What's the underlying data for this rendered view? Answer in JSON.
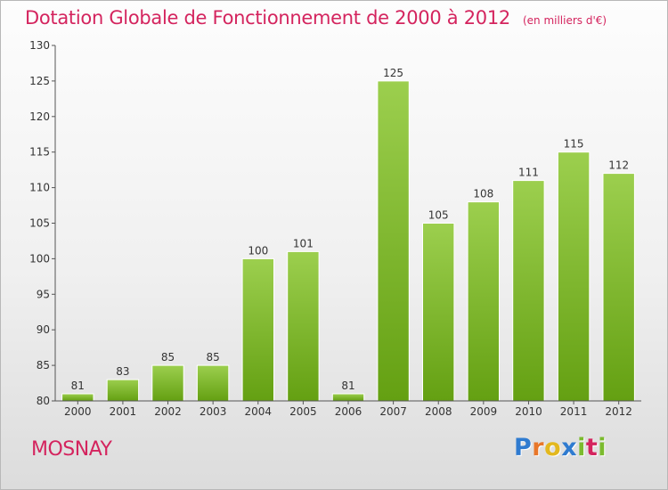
{
  "header": {
    "title": "Dotation Globale de Fonctionnement de 2000 à 2012",
    "unit": "(en milliers d'€)"
  },
  "footer": {
    "commune": "MOSNAY",
    "logo_letters": [
      "P",
      "r",
      "o",
      "x",
      "i",
      "t",
      "i"
    ]
  },
  "colors": {
    "title": "#d4245e",
    "bar_top": "#9ccf4e",
    "bar_bottom": "#64a012",
    "logo": [
      "#2f7bd0",
      "#e8772a",
      "#e3b81e",
      "#2f7bd0",
      "#7bbb2e",
      "#d4245e",
      "#7bbb2e"
    ]
  },
  "chart_data": {
    "type": "bar",
    "title": "Dotation Globale de Fonctionnement de 2000 à 2012",
    "subtitle": "(en milliers d'€)",
    "categories": [
      "2000",
      "2001",
      "2002",
      "2003",
      "2004",
      "2005",
      "2006",
      "2007",
      "2008",
      "2009",
      "2010",
      "2011",
      "2012"
    ],
    "values": [
      81,
      83,
      85,
      85,
      100,
      101,
      81,
      125,
      105,
      108,
      111,
      115,
      112
    ],
    "ylim": [
      80,
      130
    ],
    "yticks": [
      80,
      85,
      90,
      95,
      100,
      105,
      110,
      115,
      120,
      125,
      130
    ],
    "grid": false,
    "legend": "none"
  }
}
